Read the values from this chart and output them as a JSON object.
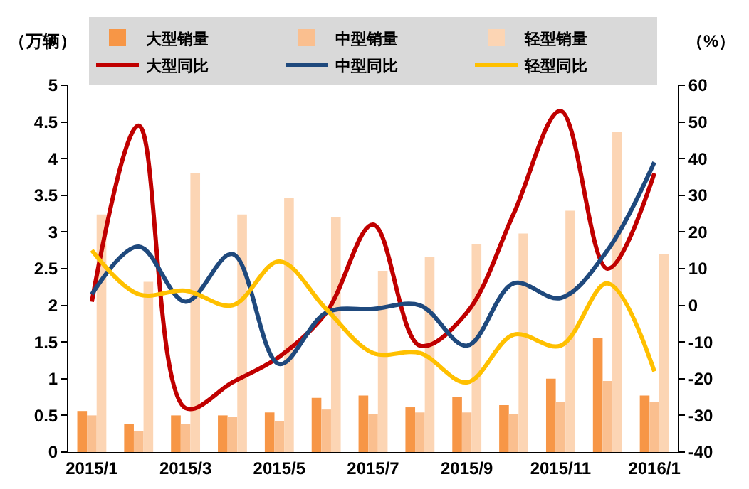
{
  "chart_data": {
    "type": "bar",
    "ylabel": "（万辆）",
    "y2label": "（%）",
    "categories": [
      "2015/1",
      null,
      "2015/3",
      null,
      "2015/5",
      null,
      "2015/7",
      null,
      "2015/9",
      null,
      "2015/11",
      null,
      "2016/1"
    ],
    "series": [
      {
        "name": "大型销量",
        "color": "#f79646",
        "values": [
          0.56,
          0.38,
          0.5,
          0.5,
          0.54,
          0.74,
          0.77,
          0.61,
          0.75,
          0.64,
          1.0,
          1.55,
          0.77
        ]
      },
      {
        "name": "中型销量",
        "color": "#fabf8f",
        "values": [
          0.5,
          0.29,
          0.38,
          0.48,
          0.42,
          0.58,
          0.52,
          0.54,
          0.54,
          0.52,
          0.68,
          0.97,
          0.68
        ]
      },
      {
        "name": "轻型销量",
        "color": "#fcd5b4",
        "values": [
          3.24,
          2.32,
          3.8,
          3.24,
          3.47,
          3.2,
          2.47,
          2.66,
          2.84,
          2.98,
          3.29,
          4.36,
          2.7
        ]
      },
      {
        "name": "大型同比",
        "type": "line",
        "axis": "y2",
        "color": "#c00000",
        "values": [
          1,
          49,
          -28,
          -21,
          -14,
          -2,
          22,
          -11,
          -2,
          25,
          53,
          10,
          36
        ]
      },
      {
        "name": "中型同比",
        "type": "line",
        "axis": "y2",
        "color": "#1f497d",
        "values": [
          3,
          16,
          1,
          14,
          -16,
          -2,
          -1,
          0,
          -11,
          6,
          2,
          15,
          39
        ]
      },
      {
        "name": "轻型同比",
        "type": "line",
        "axis": "y2",
        "color": "#ffc000",
        "values": [
          15,
          3,
          4,
          0,
          12,
          -1,
          -13,
          -13,
          -21,
          -8,
          -11,
          6,
          -18
        ]
      }
    ],
    "ylim": [
      0,
      5
    ],
    "yticks": [
      0,
      0.5,
      1,
      1.5,
      2,
      2.5,
      3,
      3.5,
      4,
      4.5,
      5
    ],
    "y2lim": [
      -40,
      60
    ],
    "y2ticks": [
      -40,
      -30,
      -20,
      -10,
      0,
      10,
      20,
      30,
      40,
      50,
      60
    ],
    "legend": "top",
    "grid": false,
    "marker": "none"
  }
}
